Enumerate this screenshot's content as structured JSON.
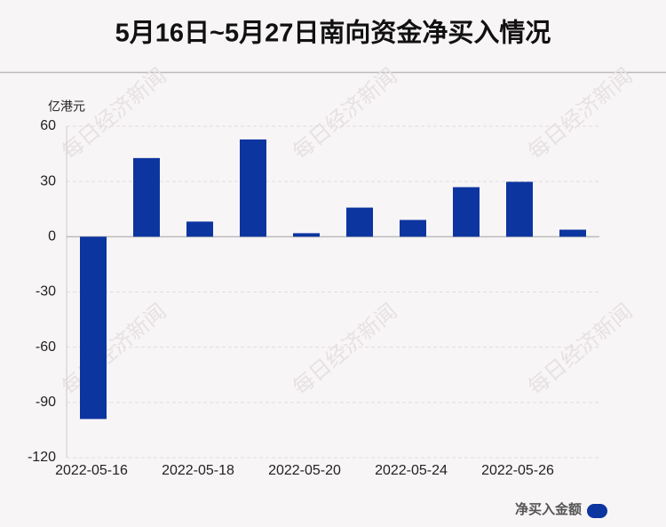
{
  "chart_data": {
    "type": "bar",
    "title": "5月16日~5月27日南向资金净买入情况",
    "y_unit": "亿港元",
    "watermark": "每日经济新闻",
    "categories": [
      "2022-05-16",
      null,
      "2022-05-18",
      null,
      "2022-05-20",
      null,
      "2022-05-24",
      null,
      "2022-05-26",
      null
    ],
    "series": [
      {
        "name": "净买入金额",
        "color": "#0d35a0",
        "values": [
          -99,
          42.7,
          8.2,
          52.8,
          1.9,
          15.8,
          9.1,
          26.9,
          29.8,
          3.8
        ]
      }
    ],
    "ylim": [
      -120,
      60
    ],
    "yticks": [
      -120,
      -90,
      -60,
      -30,
      0,
      30,
      60
    ],
    "grid": true,
    "legend": "bottom-right"
  }
}
